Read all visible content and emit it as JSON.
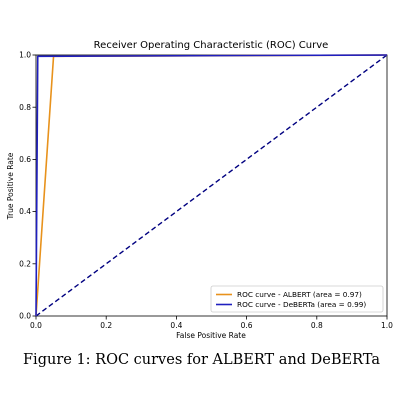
{
  "chart_data": {
    "type": "line",
    "title": "Receiver Operating Characteristic (ROC) Curve",
    "xlabel": "False Positive Rate",
    "ylabel": "True Positive Rate",
    "xlim": [
      0.0,
      1.0
    ],
    "ylim": [
      0.0,
      1.0
    ],
    "xticks": [
      "0.0",
      "0.2",
      "0.4",
      "0.6",
      "0.8",
      "1.0"
    ],
    "yticks": [
      "0.0",
      "0.2",
      "0.4",
      "0.6",
      "0.8",
      "1.0"
    ],
    "grid": false,
    "legend_position": "lower-right",
    "series": [
      {
        "name": "ROC curve - ALBERT (area = 0.97)",
        "color": "#e8921c",
        "x": [
          0.0,
          0.05,
          1.0
        ],
        "y": [
          0.0,
          0.995,
          1.0
        ]
      },
      {
        "name": "ROC curve - DeBERTa (area = 0.99)",
        "color": "#1f1fbf",
        "x": [
          0.0,
          0.005,
          1.0
        ],
        "y": [
          0.0,
          0.995,
          1.0
        ]
      }
    ],
    "reference_line": {
      "style": "dashed",
      "color": "#000080",
      "x": [
        0.0,
        1.0
      ],
      "y": [
        0.0,
        1.0
      ]
    }
  },
  "caption": "Figure 1: ROC curves for ALBERT and DeBERTa"
}
